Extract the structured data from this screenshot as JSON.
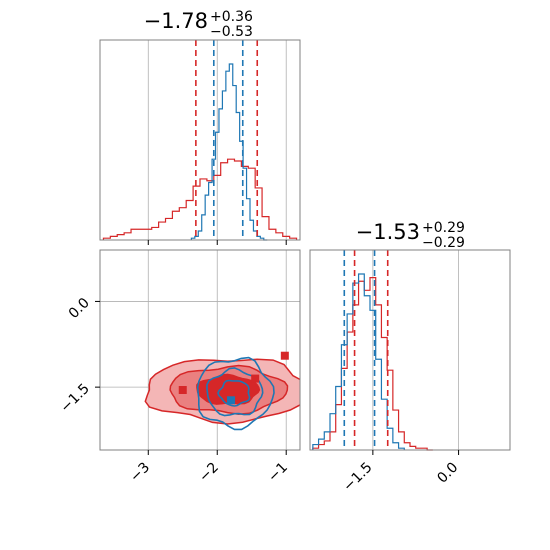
{
  "colors": {
    "red": "#d62728",
    "blue": "#1f77b4",
    "red_fill_outer": "#f4b6b6",
    "red_fill_mid": "#ea8080",
    "red_fill_inner": "#d62728",
    "grid": "#b0b0b0",
    "frame": "#808080"
  },
  "chart_data": [
    {
      "type": "histogram",
      "panel": "top-left",
      "title_main": "−1.78",
      "title_sup": "+0.36",
      "title_sub": "−0.53",
      "xlim": [
        -3.7,
        -0.8
      ],
      "grid": true,
      "quantile_lines": {
        "red": [
          -2.31,
          -1.42
        ],
        "blue": [
          -2.05,
          -1.63
        ]
      },
      "series": [
        {
          "color": "red",
          "bin_centers": [
            -3.6,
            -3.5,
            -3.4,
            -3.3,
            -3.2,
            -3.1,
            -3.0,
            -2.9,
            -2.8,
            -2.7,
            -2.6,
            -2.5,
            -2.4,
            -2.3,
            -2.2,
            -2.1,
            -2.0,
            -1.9,
            -1.8,
            -1.7,
            -1.6,
            -1.5,
            -1.4,
            -1.3,
            -1.2,
            -1.1,
            -1.0,
            -0.9
          ],
          "values": [
            0.01,
            0.02,
            0.03,
            0.04,
            0.06,
            0.06,
            0.06,
            0.07,
            0.1,
            0.12,
            0.16,
            0.18,
            0.22,
            0.3,
            0.34,
            0.33,
            0.36,
            0.43,
            0.45,
            0.44,
            0.41,
            0.4,
            0.29,
            0.13,
            0.06,
            0.04,
            0.02,
            0.01
          ]
        },
        {
          "color": "blue",
          "bin_centers": [
            -2.35,
            -2.3,
            -2.25,
            -2.2,
            -2.15,
            -2.1,
            -2.05,
            -2.0,
            -1.95,
            -1.9,
            -1.85,
            -1.8,
            -1.75,
            -1.7,
            -1.65,
            -1.6,
            -1.55,
            -1.5,
            -1.45,
            -1.4,
            -1.35,
            -1.3
          ],
          "values": [
            0.01,
            0.02,
            0.05,
            0.14,
            0.25,
            0.32,
            0.45,
            0.6,
            0.73,
            0.83,
            0.94,
            0.98,
            0.86,
            0.71,
            0.55,
            0.4,
            0.23,
            0.11,
            0.05,
            0.02,
            0.01,
            0.0
          ]
        }
      ]
    },
    {
      "type": "contour",
      "panel": "bottom-left",
      "xlim": [
        -3.7,
        -0.8
      ],
      "ylim": [
        -2.6,
        0.9
      ],
      "x_ticks": [
        "−3",
        "−2",
        "−1"
      ],
      "x_tick_values": [
        -3,
        -2,
        -1
      ],
      "y_ticks": [
        "0.0",
        "−1.5"
      ],
      "y_tick_values": [
        0.0,
        -1.5
      ],
      "grid": true,
      "red_contours": {
        "center": [
          -1.85,
          -1.55
        ],
        "widths": [
          [
            1.2,
            0.55
          ],
          [
            0.85,
            0.4
          ],
          [
            0.45,
            0.25
          ]
        ]
      },
      "blue_contours": {
        "center": [
          -1.75,
          -1.6
        ],
        "widths": [
          [
            0.55,
            0.6
          ],
          [
            0.4,
            0.4
          ],
          [
            0.22,
            0.22
          ]
        ]
      },
      "markers": [
        {
          "color": "red",
          "x": -2.5,
          "y": -1.55
        },
        {
          "color": "red",
          "x": -1.45,
          "y": -1.35
        },
        {
          "color": "red",
          "x": -1.02,
          "y": -0.95
        },
        {
          "color": "blue",
          "x": -1.8,
          "y": -1.73
        }
      ]
    },
    {
      "type": "histogram",
      "panel": "bottom-right",
      "title_main": "−1.53",
      "title_sup": "+0.29",
      "title_sub": "−0.29",
      "xlim": [
        -2.6,
        0.9
      ],
      "x_ticks": [
        "−1.5",
        "0.0"
      ],
      "x_tick_values": [
        -1.5,
        0.0
      ],
      "grid": true,
      "quantile_lines": {
        "red": [
          -1.82,
          -1.24
        ],
        "blue": [
          -2.0,
          -1.47
        ]
      },
      "series": [
        {
          "color": "red",
          "bin_centers": [
            -2.5,
            -2.4,
            -2.3,
            -2.2,
            -2.1,
            -2.0,
            -1.9,
            -1.8,
            -1.7,
            -1.6,
            -1.5,
            -1.4,
            -1.3,
            -1.2,
            -1.1,
            -1.0,
            -0.9,
            -0.8,
            -0.7,
            -0.6,
            -0.5
          ],
          "values": [
            0.01,
            0.03,
            0.05,
            0.1,
            0.25,
            0.45,
            0.65,
            0.8,
            0.93,
            0.88,
            0.95,
            0.8,
            0.62,
            0.44,
            0.22,
            0.1,
            0.04,
            0.02,
            0.01,
            0.01,
            0.0
          ]
        },
        {
          "color": "blue",
          "bin_centers": [
            -2.5,
            -2.4,
            -2.3,
            -2.2,
            -2.1,
            -2.0,
            -1.9,
            -1.8,
            -1.7,
            -1.6,
            -1.5,
            -1.4,
            -1.3,
            -1.2,
            -1.1,
            -1.0
          ],
          "values": [
            0.03,
            0.06,
            0.1,
            0.2,
            0.35,
            0.58,
            0.75,
            0.92,
            0.97,
            0.85,
            0.77,
            0.5,
            0.28,
            0.12,
            0.04,
            0.01
          ]
        }
      ]
    }
  ]
}
